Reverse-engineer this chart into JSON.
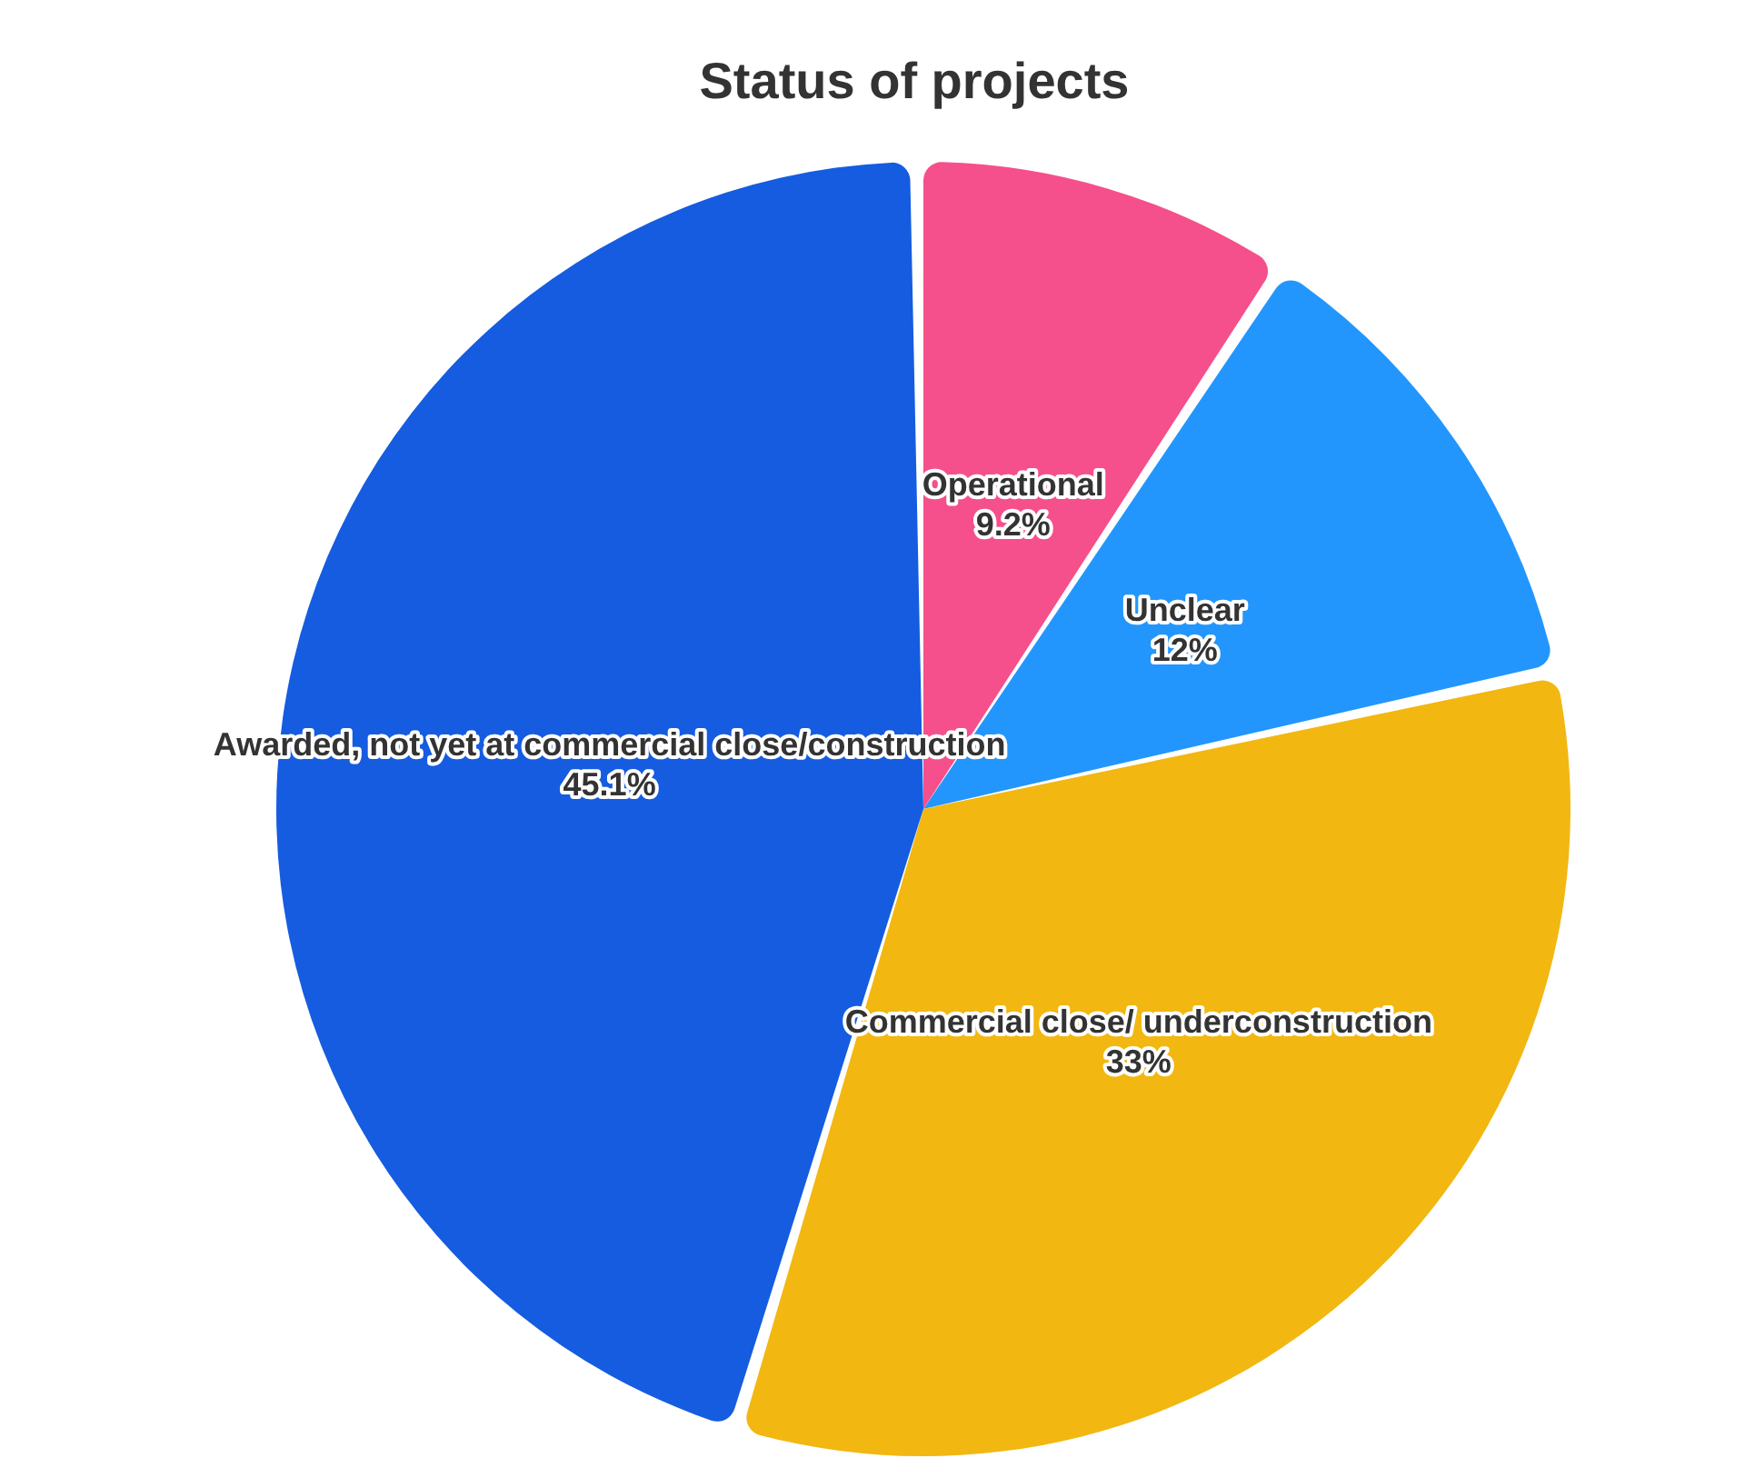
{
  "chart_data": {
    "type": "pie",
    "title": "Status of projects",
    "categories": [
      "Operational",
      "Unclear",
      "Commercial close/ underconstruction",
      "Awarded, not yet at commercial close/construction"
    ],
    "values": [
      9.2,
      12,
      33,
      45.1
    ],
    "colors": [
      "#f5508b",
      "#2396fd",
      "#f2b711",
      "#155ce0"
    ],
    "value_labels": [
      "9.2%",
      "12%",
      "33%",
      "45.1%"
    ]
  }
}
